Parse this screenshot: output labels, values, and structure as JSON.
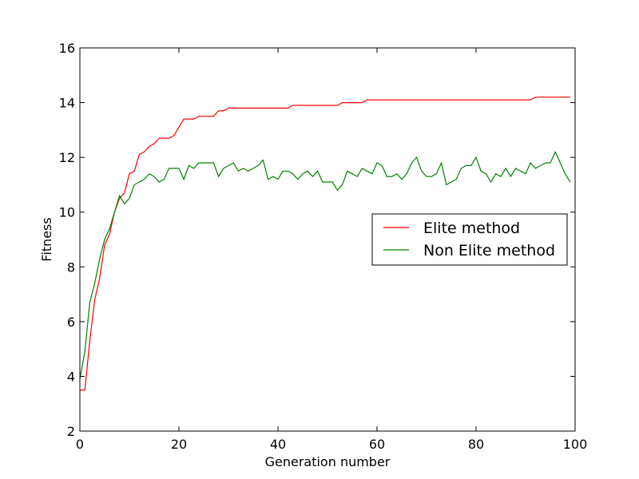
{
  "chart_data": {
    "type": "line",
    "title": "",
    "xlabel": "Generation number",
    "ylabel": "Fitness",
    "xlim": [
      0,
      100
    ],
    "ylim": [
      2,
      16
    ],
    "xticks": [
      0,
      20,
      40,
      60,
      80,
      100
    ],
    "yticks": [
      2,
      4,
      6,
      8,
      10,
      12,
      14,
      16
    ],
    "xtick_labels": [
      "0",
      "20",
      "40",
      "60",
      "80",
      "100"
    ],
    "ytick_labels": [
      "2",
      "4",
      "6",
      "8",
      "10",
      "12",
      "14",
      "16"
    ],
    "grid": false,
    "legend_position": "center-right",
    "x": [
      0,
      1,
      2,
      3,
      4,
      5,
      6,
      7,
      8,
      9,
      10,
      11,
      12,
      13,
      14,
      15,
      16,
      17,
      18,
      19,
      20,
      21,
      22,
      23,
      24,
      25,
      26,
      27,
      28,
      29,
      30,
      31,
      32,
      33,
      34,
      35,
      36,
      37,
      38,
      39,
      40,
      41,
      42,
      43,
      44,
      45,
      46,
      47,
      48,
      49,
      50,
      51,
      52,
      53,
      54,
      55,
      56,
      57,
      58,
      59,
      60,
      61,
      62,
      63,
      64,
      65,
      66,
      67,
      68,
      69,
      70,
      71,
      72,
      73,
      74,
      75,
      76,
      77,
      78,
      79,
      80,
      81,
      82,
      83,
      84,
      85,
      86,
      87,
      88,
      89,
      90,
      91,
      92,
      93,
      94,
      95,
      96,
      97,
      98,
      99
    ],
    "series": [
      {
        "name": "Elite method",
        "color": "#ff0000",
        "values": [
          3.5,
          3.5,
          5.3,
          6.8,
          7.6,
          8.8,
          9.2,
          10.0,
          10.5,
          10.7,
          11.4,
          11.5,
          12.1,
          12.2,
          12.4,
          12.5,
          12.7,
          12.7,
          12.7,
          12.8,
          13.1,
          13.4,
          13.4,
          13.4,
          13.5,
          13.5,
          13.5,
          13.5,
          13.7,
          13.7,
          13.8,
          13.8,
          13.8,
          13.8,
          13.8,
          13.8,
          13.8,
          13.8,
          13.8,
          13.8,
          13.8,
          13.8,
          13.8,
          13.9,
          13.9,
          13.9,
          13.9,
          13.9,
          13.9,
          13.9,
          13.9,
          13.9,
          13.9,
          14.0,
          14.0,
          14.0,
          14.0,
          14.0,
          14.1,
          14.1,
          14.1,
          14.1,
          14.1,
          14.1,
          14.1,
          14.1,
          14.1,
          14.1,
          14.1,
          14.1,
          14.1,
          14.1,
          14.1,
          14.1,
          14.1,
          14.1,
          14.1,
          14.1,
          14.1,
          14.1,
          14.1,
          14.1,
          14.1,
          14.1,
          14.1,
          14.1,
          14.1,
          14.1,
          14.1,
          14.1,
          14.1,
          14.1,
          14.2,
          14.2,
          14.2,
          14.2,
          14.2,
          14.2,
          14.2,
          14.2
        ]
      },
      {
        "name": "Non Elite method",
        "color": "#008000",
        "values": [
          3.9,
          4.9,
          6.7,
          7.4,
          8.3,
          9.0,
          9.4,
          10.0,
          10.6,
          10.3,
          10.5,
          11.0,
          11.1,
          11.2,
          11.4,
          11.3,
          11.1,
          11.2,
          11.6,
          11.6,
          11.6,
          11.2,
          11.7,
          11.6,
          11.8,
          11.8,
          11.8,
          11.8,
          11.3,
          11.6,
          11.7,
          11.8,
          11.5,
          11.6,
          11.5,
          11.6,
          11.7,
          11.9,
          11.2,
          11.3,
          11.2,
          11.5,
          11.5,
          11.4,
          11.2,
          11.4,
          11.5,
          11.3,
          11.5,
          11.1,
          11.1,
          11.1,
          10.8,
          11.0,
          11.5,
          11.4,
          11.3,
          11.6,
          11.5,
          11.4,
          11.8,
          11.7,
          11.3,
          11.3,
          11.4,
          11.2,
          11.4,
          11.8,
          12.0,
          11.5,
          11.3,
          11.3,
          11.4,
          11.8,
          11.0,
          11.1,
          11.2,
          11.6,
          11.7,
          11.7,
          12.0,
          11.5,
          11.4,
          11.1,
          11.4,
          11.3,
          11.6,
          11.3,
          11.6,
          11.5,
          11.4,
          11.8,
          11.6,
          11.7,
          11.8,
          11.8,
          12.2,
          11.8,
          11.4,
          11.1
        ]
      }
    ]
  }
}
